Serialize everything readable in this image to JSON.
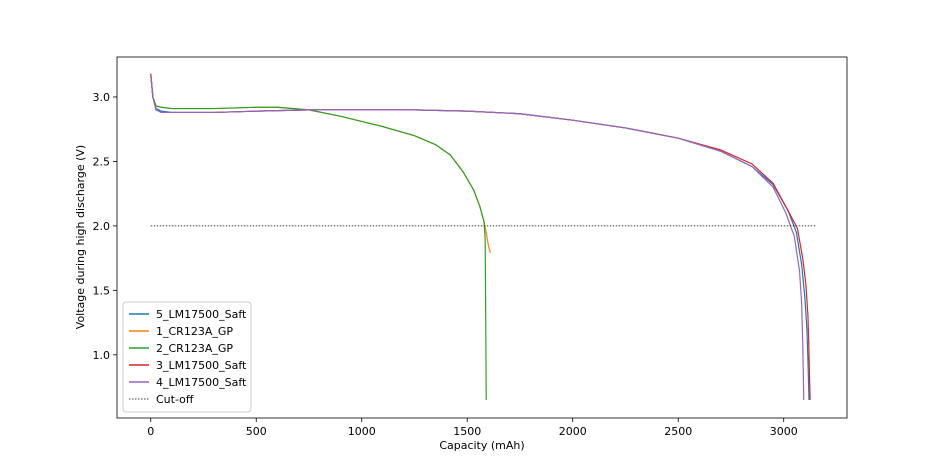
{
  "chart_data": {
    "type": "line",
    "xlabel": "Capacity (mAh)",
    "ylabel": "Voltage during high discharge (V)",
    "xlim": [
      -160,
      3300
    ],
    "ylim": [
      0.51,
      3.31
    ],
    "xticks": [
      0,
      500,
      1000,
      1500,
      2000,
      2500,
      3000
    ],
    "yticks": [
      {
        "value": 1,
        "label": "1.0"
      },
      1.5,
      {
        "value": 2,
        "label": "2.0"
      },
      2.5,
      {
        "value": 3,
        "label": "3.0"
      }
    ],
    "legend": "lower left",
    "series": [
      {
        "name": "5_LM17500_Saft",
        "color": "#1f77b4",
        "linestyle": "solid",
        "x": [
          0,
          10,
          25,
          50,
          100,
          300,
          500,
          750,
          1000,
          1250,
          1500,
          1750,
          2000,
          2250,
          2500,
          2700,
          2850,
          2950,
          3020,
          3060,
          3085,
          3100,
          3110,
          3115,
          3120
        ],
        "values": [
          3.17,
          3.0,
          2.91,
          2.89,
          2.88,
          2.88,
          2.89,
          2.9,
          2.9,
          2.9,
          2.89,
          2.87,
          2.82,
          2.76,
          2.68,
          2.58,
          2.46,
          2.32,
          2.12,
          1.95,
          1.7,
          1.45,
          1.2,
          0.95,
          0.65
        ]
      },
      {
        "name": "1_CR123A_GP",
        "color": "#ff7f0e",
        "linestyle": "solid",
        "x": [
          0,
          10,
          25,
          50,
          100,
          300,
          500,
          600,
          750,
          900,
          1000,
          1100,
          1250,
          1350,
          1420,
          1480,
          1530,
          1560,
          1580,
          1590,
          1600,
          1610
        ],
        "values": [
          3.18,
          3.0,
          2.93,
          2.92,
          2.91,
          2.91,
          2.92,
          2.92,
          2.9,
          2.85,
          2.81,
          2.77,
          2.7,
          2.63,
          2.55,
          2.42,
          2.28,
          2.15,
          2.03,
          1.95,
          1.85,
          1.79
        ]
      },
      {
        "name": "2_CR123A_GP",
        "color": "#2ca02c",
        "linestyle": "solid",
        "x": [
          0,
          10,
          25,
          50,
          100,
          300,
          500,
          600,
          750,
          900,
          1000,
          1100,
          1250,
          1350,
          1420,
          1480,
          1530,
          1560,
          1580,
          1585,
          1588,
          1590
        ],
        "values": [
          3.18,
          3.0,
          2.93,
          2.92,
          2.91,
          2.91,
          2.92,
          2.92,
          2.9,
          2.85,
          2.81,
          2.77,
          2.7,
          2.63,
          2.55,
          2.42,
          2.28,
          2.15,
          2.03,
          1.9,
          1.2,
          0.65
        ]
      },
      {
        "name": "3_LM17500_Saft",
        "color": "#d62728",
        "linestyle": "solid",
        "x": [
          0,
          10,
          25,
          50,
          100,
          300,
          500,
          750,
          1000,
          1250,
          1500,
          1750,
          2000,
          2250,
          2500,
          2700,
          2850,
          2950,
          3020,
          3065,
          3090,
          3105,
          3115,
          3120,
          3125
        ],
        "values": [
          3.18,
          3.0,
          2.9,
          2.88,
          2.88,
          2.88,
          2.89,
          2.9,
          2.9,
          2.9,
          2.89,
          2.87,
          2.82,
          2.76,
          2.68,
          2.59,
          2.48,
          2.33,
          2.12,
          1.98,
          1.75,
          1.55,
          1.3,
          1.0,
          0.65
        ]
      },
      {
        "name": "4_LM17500_Saft",
        "color": "#9467bd",
        "linestyle": "solid",
        "x": [
          0,
          10,
          25,
          50,
          100,
          300,
          500,
          750,
          1000,
          1250,
          1500,
          1750,
          2000,
          2250,
          2500,
          2700,
          2850,
          2950,
          3010,
          3050,
          3075,
          3085,
          3090,
          3093,
          3095
        ],
        "values": [
          3.17,
          3.0,
          2.9,
          2.88,
          2.88,
          2.88,
          2.89,
          2.9,
          2.9,
          2.9,
          2.89,
          2.87,
          2.82,
          2.76,
          2.68,
          2.58,
          2.46,
          2.3,
          2.1,
          1.92,
          1.65,
          1.4,
          1.1,
          0.85,
          0.65
        ]
      },
      {
        "name": "Cut-off",
        "color": "#000000",
        "linestyle": "dotted",
        "x": [
          0,
          3150
        ],
        "values": [
          2,
          2
        ]
      }
    ]
  }
}
